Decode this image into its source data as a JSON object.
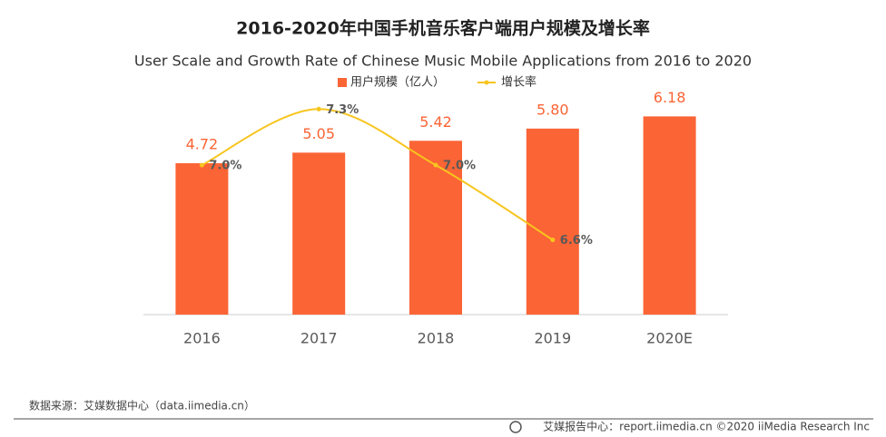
{
  "chart_data": {
    "type": "bar-line",
    "title": "2016-2020年中国手机音乐客户端用户规模及增长率",
    "subtitle": "User Scale and Growth Rate of Chinese Music Mobile Applications from 2016 to 2020",
    "categories": [
      "2016",
      "2017",
      "2018",
      "2019",
      "2020E"
    ],
    "series": [
      {
        "name": "用户规模（亿人）",
        "type": "bar",
        "color": "#fb6435",
        "values": [
          4.72,
          5.05,
          5.42,
          5.8,
          6.18
        ],
        "value_labels": [
          "4.72",
          "5.05",
          "5.42",
          "5.80",
          "6.18"
        ]
      },
      {
        "name": "增长率",
        "type": "line",
        "axis": "y2",
        "color": "#f7c51e",
        "values": [
          7.0,
          7.3,
          7.0,
          6.6,
          null
        ],
        "value_labels": [
          "7.0%",
          "7.3%",
          "7.0%",
          "6.6%",
          null
        ]
      }
    ],
    "ylim": [
      0,
      6.7
    ],
    "y2lim": [
      6.2,
      7.35
    ],
    "legend": "top",
    "source": "数据来源：艾媒数据中心（data.iimedia.cn）",
    "footer": "艾媒报告中心：report.iimedia.cn  ©2020  iiMedia Research  Inc"
  }
}
